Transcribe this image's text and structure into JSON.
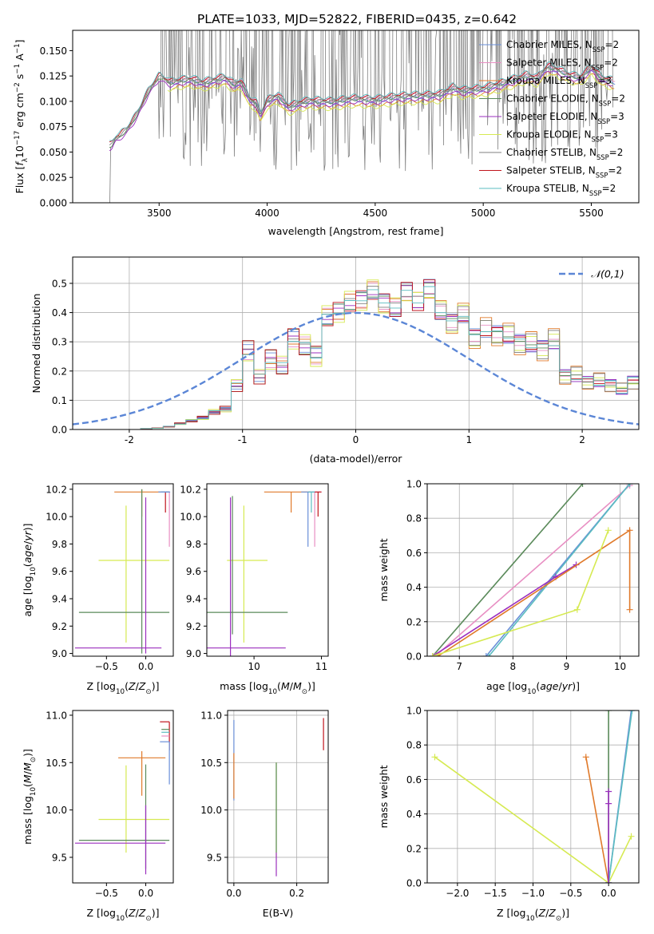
{
  "figure": {
    "title": "PLATE=1033, MJD=52822, FIBERID=0435, z=0.642"
  },
  "chart_data": [
    {
      "id": "spectrum",
      "type": "line",
      "xlabel": "wavelength [Angstrom, rest frame]",
      "ylabel": "Flux [f_λ10^-17 erg cm^-2 s^-1 A^-1]",
      "xlim": [
        3100,
        5720
      ],
      "ylim": [
        0,
        0.17
      ],
      "xticks": [
        3500,
        4000,
        4500,
        5000,
        5500
      ],
      "yticks": [
        0.0,
        0.025,
        0.05,
        0.075,
        0.1,
        0.125,
        0.15
      ],
      "ytick_labels": [
        "0.000",
        "0.025",
        "0.050",
        "0.075",
        "0.100",
        "0.125",
        "0.150"
      ],
      "grid": false,
      "legend": "upper-right",
      "observed": {
        "x_start": 3200,
        "x_end": 5600,
        "step": 4,
        "noise_start": 3500
      },
      "continuum": {
        "x": [
          3280,
          3300,
          3320,
          3350,
          3400,
          3450,
          3500,
          3550,
          3600,
          3650,
          3700,
          3750,
          3800,
          3850,
          3880,
          3920,
          3950,
          3970,
          4000,
          4050,
          4100,
          4150,
          4200,
          4300,
          4400,
          4500,
          4600,
          4700,
          4800,
          4860,
          4900,
          5000,
          5100,
          5200,
          5250,
          5300,
          5350,
          5400,
          5450,
          5500,
          5550,
          5600
        ],
        "y": [
          0.055,
          0.062,
          0.065,
          0.07,
          0.086,
          0.108,
          0.123,
          0.117,
          0.119,
          0.12,
          0.117,
          0.119,
          0.122,
          0.115,
          0.118,
          0.1,
          0.097,
          0.085,
          0.099,
          0.104,
          0.093,
          0.097,
          0.099,
          0.098,
          0.101,
          0.1,
          0.103,
          0.104,
          0.105,
          0.112,
          0.109,
          0.111,
          0.117,
          0.124,
          0.121,
          0.133,
          0.129,
          0.124,
          0.122,
          0.132,
          0.121,
          0.118
        ]
      },
      "series": [
        {
          "name": "Chabrier MILES, N_SSP=2",
          "color": "#6a8fd8",
          "x_start": 3540,
          "x_end": 5610,
          "offset": 0.0
        },
        {
          "name": "Salpeter MILES, N_SSP=2",
          "color": "#e88fc3",
          "x_start": 3540,
          "x_end": 5610,
          "offset": 0.003
        },
        {
          "name": "Kroupa MILES, N_SSP=3",
          "color": "#e07a2b",
          "x_start": 3560,
          "x_end": 5610,
          "offset": -0.004
        },
        {
          "name": "Chabrier ELODIE, N_SSP=2",
          "color": "#5a8a5a",
          "x_start": 3270,
          "x_end": 5600,
          "offset": 0.001
        },
        {
          "name": "Salpeter ELODIE, N_SSP=3",
          "color": "#9b2fbf",
          "x_start": 3270,
          "x_end": 5600,
          "offset": -0.002
        },
        {
          "name": "Kroupa ELODIE, N_SSP=3",
          "color": "#d6ea52",
          "x_start": 3540,
          "x_end": 5600,
          "offset": -0.006
        },
        {
          "name": "Chabrier STELIB, N_SSP=2",
          "color": "#7f7f7f",
          "x_start": 3270,
          "x_end": 5600,
          "offset": 0.002
        },
        {
          "name": "Salpeter STELIB, N_SSP=2",
          "color": "#c0141c",
          "x_start": 3270,
          "x_end": 5600,
          "offset": 0.004
        },
        {
          "name": "Kroupa STELIB, N_SSP=2",
          "color": "#5bbcc0",
          "x_start": 3270,
          "x_end": 5600,
          "offset": 0.005
        }
      ]
    },
    {
      "id": "residuals",
      "type": "step",
      "xlabel": "(data-model)/error",
      "ylabel": "Normed distribution",
      "xlim": [
        -2.5,
        2.5
      ],
      "ylim": [
        0,
        0.59
      ],
      "xticks": [
        -2,
        -1,
        0,
        1,
        2
      ],
      "yticks": [
        0.0,
        0.1,
        0.2,
        0.3,
        0.4,
        0.5
      ],
      "ytick_labels": [
        "0.0",
        "0.1",
        "0.2",
        "0.3",
        "0.4",
        "0.5"
      ],
      "grid": true,
      "legend": "upper-right",
      "gaussian_label": "𝒩(0,1)",
      "gaussian_color": "#5b86d6",
      "bin_edges_start": -2.5,
      "bin_width": 0.1,
      "base": [
        0.0,
        0.0,
        0.0,
        0.0,
        0.0,
        0.0,
        0.003,
        0.005,
        0.01,
        0.02,
        0.03,
        0.04,
        0.06,
        0.07,
        0.15,
        0.27,
        0.18,
        0.24,
        0.22,
        0.31,
        0.29,
        0.25,
        0.39,
        0.4,
        0.44,
        0.44,
        0.48,
        0.43,
        0.42,
        0.47,
        0.44,
        0.48,
        0.41,
        0.36,
        0.4,
        0.31,
        0.35,
        0.32,
        0.33,
        0.29,
        0.3,
        0.27,
        0.31,
        0.18,
        0.19,
        0.16,
        0.17,
        0.15,
        0.14,
        0.16,
        0.13,
        0.17,
        0.11,
        0.12,
        0.1,
        0.11,
        0.07,
        0.06,
        0.05,
        0.04,
        0.05,
        0.03,
        0.04,
        0.03,
        0.02,
        0.03,
        0.02,
        0.03,
        0.02,
        0.01
      ],
      "series_colors": [
        "#6a8fd8",
        "#e88fc3",
        "#e07a2b",
        "#5a8a5a",
        "#9b2fbf",
        "#d6ea52",
        "#7f7f7f",
        "#c0141c",
        "#5bbcc0"
      ]
    },
    {
      "id": "age-vs-z",
      "type": "errorbar",
      "xlabel": "Z [log10(Z/Z⊙)]",
      "ylabel": "age [log10(age/yr)]",
      "xlim": [
        -0.93,
        0.35
      ],
      "ylim": [
        8.98,
        10.24
      ],
      "xticks": [
        -0.5,
        0.0
      ],
      "xtick_labels": [
        "−0.5",
        "0.0"
      ],
      "yticks": [
        9.0,
        9.2,
        9.4,
        9.6,
        9.8,
        10.0,
        10.2
      ],
      "ytick_labels": [
        "9.0",
        "9.2",
        "9.4",
        "9.6",
        "9.8",
        "10.0",
        "10.2"
      ],
      "grid": false,
      "points": [
        {
          "x": -0.05,
          "y": 10.18,
          "xerr": [
            0.35,
            0.25
          ],
          "yerr": [
            0.18,
            0.02
          ],
          "color": "#e07a2b"
        },
        {
          "x": -0.25,
          "y": 9.68,
          "xerr": [
            0.35,
            0.55
          ],
          "yerr": [
            0.6,
            0.4
          ],
          "color": "#d6ea52"
        },
        {
          "x": -0.05,
          "y": 9.3,
          "xerr": [
            0.8,
            0.35
          ],
          "yerr": [
            0.3,
            0.9
          ],
          "color": "#5a8a5a"
        },
        {
          "x": 0.0,
          "y": 9.04,
          "xerr": [
            0.9,
            0.2
          ],
          "yerr": [
            0.04,
            1.1
          ],
          "color": "#9b2fbf"
        },
        {
          "x": 0.3,
          "y": 10.18,
          "xerr": [
            0.1,
            0.0
          ],
          "yerr": [
            0.4,
            0.0
          ],
          "color": "#e88fc3"
        },
        {
          "x": 0.25,
          "y": 10.18,
          "xerr": [
            0.05,
            0.05
          ],
          "yerr": [
            0.15,
            0.0
          ],
          "color": "#c0141c"
        },
        {
          "x": 0.22,
          "y": 10.18,
          "xerr": [
            0.03,
            0.08
          ],
          "yerr": [
            0.0,
            0.0
          ],
          "color": "#5bbcc0"
        },
        {
          "x": 0.21,
          "y": 10.18,
          "xerr": [
            0.05,
            0.1
          ],
          "yerr": [
            0.0,
            0.0
          ],
          "color": "#6a8fd8"
        }
      ]
    },
    {
      "id": "age-vs-mass",
      "type": "errorbar",
      "xlabel": "mass [log10(M/M⊙)]",
      "ylabel": "",
      "xlim": [
        9.3,
        11.1
      ],
      "ylim": [
        8.98,
        10.24
      ],
      "xticks": [
        10,
        11
      ],
      "xtick_labels": [
        "10",
        "11"
      ],
      "yticks": [
        9.0,
        9.2,
        9.4,
        9.6,
        9.8,
        10.0,
        10.2
      ],
      "ytick_labels": [
        "9.0",
        "9.2",
        "9.4",
        "9.6",
        "9.8",
        "10.0",
        "10.2"
      ],
      "grid": false,
      "points": [
        {
          "x": 10.55,
          "y": 10.18,
          "xerr": [
            0.4,
            0.3
          ],
          "yerr": [
            0.15,
            0.0
          ],
          "color": "#e07a2b"
        },
        {
          "x": 9.85,
          "y": 9.68,
          "xerr": [
            0.25,
            0.35
          ],
          "yerr": [
            0.6,
            0.4
          ],
          "color": "#d6ea52"
        },
        {
          "x": 9.68,
          "y": 9.3,
          "xerr": [
            0.38,
            0.82
          ],
          "yerr": [
            0.16,
            0.85
          ],
          "color": "#5a8a5a"
        },
        {
          "x": 9.65,
          "y": 9.04,
          "xerr": [
            0.4,
            0.82
          ],
          "yerr": [
            0.1,
            1.1
          ],
          "color": "#9b2fbf"
        },
        {
          "x": 10.9,
          "y": 10.18,
          "xerr": [
            0.1,
            0.1
          ],
          "yerr": [
            0.4,
            0.0
          ],
          "color": "#e88fc3"
        },
        {
          "x": 10.8,
          "y": 10.18,
          "xerr": [
            0.1,
            0.1
          ],
          "yerr": [
            0.4,
            0.0
          ],
          "color": "#6a8fd8"
        },
        {
          "x": 10.95,
          "y": 10.18,
          "xerr": [
            0.05,
            0.05
          ],
          "yerr": [
            0.18,
            0.0
          ],
          "color": "#c0141c"
        },
        {
          "x": 10.85,
          "y": 10.18,
          "xerr": [
            0.05,
            0.05
          ],
          "yerr": [
            0.15,
            0.0
          ],
          "color": "#5bbcc0"
        }
      ]
    },
    {
      "id": "weight-vs-age",
      "type": "line",
      "xlabel": "age [log10(age/yr)]",
      "ylabel": "mass weight",
      "xlim": [
        6.4,
        10.35
      ],
      "ylim": [
        0,
        1
      ],
      "xticks": [
        7,
        8,
        9,
        10
      ],
      "yticks": [
        0.0,
        0.2,
        0.4,
        0.6,
        0.8,
        1.0
      ],
      "ytick_labels": [
        "0.0",
        "0.2",
        "0.4",
        "0.6",
        "0.8",
        "1.0"
      ],
      "grid": true,
      "series": [
        {
          "color": "#5a8a5a",
          "x": [
            6.5,
            9.3
          ],
          "y": [
            0.0,
            1.0
          ]
        },
        {
          "color": "#e88fc3",
          "x": [
            6.55,
            10.18
          ],
          "y": [
            0.0,
            0.99
          ]
        },
        {
          "color": "#6a8fd8",
          "x": [
            7.5,
            10.18
          ],
          "y": [
            0.0,
            1.0
          ]
        },
        {
          "color": "#5bbcc0",
          "x": [
            7.55,
            10.18
          ],
          "y": [
            0.0,
            1.0
          ]
        },
        {
          "color": "#9b2fbf",
          "x": [
            6.5,
            8.8,
            9.18
          ],
          "y": [
            0.0,
            0.46,
            0.53
          ]
        },
        {
          "color": "#e07a2b",
          "x": [
            6.6,
            10.18,
            10.18
          ],
          "y": [
            0.0,
            0.73,
            0.27
          ]
        },
        {
          "color": "#d6ea52",
          "x": [
            6.5,
            9.2,
            9.78
          ],
          "y": [
            0.0,
            0.27,
            0.73
          ]
        }
      ]
    },
    {
      "id": "mass-vs-z",
      "type": "errorbar",
      "xlabel": "Z [log10(Z/Z⊙)]",
      "ylabel": "mass [log10(M/M⊙)]",
      "xlim": [
        -0.93,
        0.35
      ],
      "ylim": [
        9.23,
        11.05
      ],
      "xticks": [
        -0.5,
        0.0
      ],
      "xtick_labels": [
        "−0.5",
        "0.0"
      ],
      "yticks": [
        9.5,
        10.0,
        10.5,
        11.0
      ],
      "ytick_labels": [
        "9.5",
        "10.0",
        "10.5",
        "11.0"
      ],
      "grid": false,
      "points": [
        {
          "x": -0.05,
          "y": 10.55,
          "xerr": [
            0.3,
            0.3
          ],
          "yerr": [
            0.4,
            0.07
          ],
          "color": "#e07a2b"
        },
        {
          "x": -0.25,
          "y": 9.9,
          "xerr": [
            0.35,
            0.55
          ],
          "yerr": [
            0.35,
            0.57
          ],
          "color": "#d6ea52"
        },
        {
          "x": 0.0,
          "y": 9.68,
          "xerr": [
            0.85,
            0.3
          ],
          "yerr": [
            0.3,
            0.8
          ],
          "color": "#5a8a5a"
        },
        {
          "x": 0.0,
          "y": 9.65,
          "xerr": [
            0.9,
            0.25
          ],
          "yerr": [
            0.33,
            0.4
          ],
          "color": "#9b2fbf"
        },
        {
          "x": 0.25,
          "y": 10.93,
          "xerr": [
            0.07,
            0.05
          ],
          "yerr": [
            0.0,
            0.0
          ],
          "color": "#c0141c"
        },
        {
          "x": 0.3,
          "y": 10.93,
          "xerr": [
            0.0,
            0.0
          ],
          "yerr": [
            0.3,
            0.0
          ],
          "color": "#c0141c"
        },
        {
          "x": 0.25,
          "y": 10.85,
          "xerr": [
            0.05,
            0.05
          ],
          "yerr": [
            0.0,
            0.0
          ],
          "color": "#5a8a5a"
        },
        {
          "x": 0.25,
          "y": 10.82,
          "xerr": [
            0.05,
            0.05
          ],
          "yerr": [
            0.0,
            0.0
          ],
          "color": "#5bbcc0"
        },
        {
          "x": 0.25,
          "y": 10.78,
          "xerr": [
            0.05,
            0.05
          ],
          "yerr": [
            0.0,
            0.0
          ],
          "color": "#e88fc3"
        },
        {
          "x": 0.25,
          "y": 10.72,
          "xerr": [
            0.07,
            0.05
          ],
          "yerr": [
            0.0,
            0.0
          ],
          "color": "#6a8fd8"
        },
        {
          "x": 0.3,
          "y": 10.72,
          "xerr": [
            0.0,
            0.0
          ],
          "yerr": [
            0.45,
            0.0
          ],
          "color": "#6a8fd8"
        }
      ]
    },
    {
      "id": "mass-vs-ebv",
      "type": "errorbar",
      "xlabel": "E(B-V)",
      "ylabel": "",
      "xlim": [
        -0.02,
        0.3
      ],
      "ylim": [
        9.23,
        11.05
      ],
      "xticks": [
        0.0,
        0.2
      ],
      "xtick_labels": [
        "0.0",
        "0.2"
      ],
      "yticks": [
        9.5,
        10.0,
        10.5,
        11.0
      ],
      "ytick_labels": [
        "9.5",
        "10.0",
        "10.5",
        "11.0"
      ],
      "grid": true,
      "points": [
        {
          "x": 0.0,
          "y": 10.55,
          "xerr": [
            0.0,
            0.0
          ],
          "yerr": [
            0.45,
            0.4
          ],
          "color": "#6a8fd8"
        },
        {
          "x": 0.0,
          "y": 10.5,
          "xerr": [
            0.0,
            0.0
          ],
          "yerr": [
            0.38,
            0.1
          ],
          "color": "#e07a2b"
        },
        {
          "x": 0.135,
          "y": 10.0,
          "xerr": [
            0.0,
            0.0
          ],
          "yerr": [
            0.5,
            0.5
          ],
          "color": "#d6ea52"
        },
        {
          "x": 0.135,
          "y": 10.0,
          "xerr": [
            0.0,
            0.0
          ],
          "yerr": [
            0.45,
            0.5
          ],
          "color": "#5a8a5a"
        },
        {
          "x": 0.135,
          "y": 9.4,
          "xerr": [
            0.0,
            0.0
          ],
          "yerr": [
            0.1,
            0.15
          ],
          "color": "#9b2fbf"
        },
        {
          "x": 0.285,
          "y": 10.8,
          "xerr": [
            0.0,
            0.0
          ],
          "yerr": [
            0.17,
            0.17
          ],
          "color": "#c0141c"
        }
      ]
    },
    {
      "id": "weight-vs-z",
      "type": "line",
      "xlabel": "Z [log10(Z/Z⊙)]",
      "ylabel": "mass weight",
      "xlim": [
        -2.4,
        0.4
      ],
      "ylim": [
        0,
        1
      ],
      "xticks": [
        -2.0,
        -1.5,
        -1.0,
        -0.5,
        0.0
      ],
      "xtick_labels": [
        "−2.0",
        "−1.5",
        "−1.0",
        "−0.5",
        "0.0"
      ],
      "yticks": [
        0.0,
        0.2,
        0.4,
        0.6,
        0.8,
        1.0
      ],
      "ytick_labels": [
        "0.0",
        "0.2",
        "0.4",
        "0.6",
        "0.8",
        "1.0"
      ],
      "grid": true,
      "series": [
        {
          "color": "#d6ea52",
          "x": [
            -2.3,
            0.0,
            0.3
          ],
          "y": [
            0.73,
            0.0,
            0.27
          ]
        },
        {
          "color": "#e07a2b",
          "x": [
            -0.3,
            0.0
          ],
          "y": [
            0.73,
            0.0
          ]
        },
        {
          "color": "#5a8a5a",
          "x": [
            0.0,
            0.0
          ],
          "y": [
            0.0,
            1.0
          ]
        },
        {
          "color": "#6a8fd8",
          "x": [
            0.0,
            0.3
          ],
          "y": [
            0.0,
            1.0
          ]
        },
        {
          "color": "#5bbcc0",
          "x": [
            0.0,
            0.31
          ],
          "y": [
            0.0,
            1.0
          ]
        },
        {
          "color": "#9b2fbf",
          "x": [
            0.0,
            0.0,
            0.0
          ],
          "y": [
            0.0,
            0.46,
            0.53
          ]
        }
      ]
    }
  ]
}
